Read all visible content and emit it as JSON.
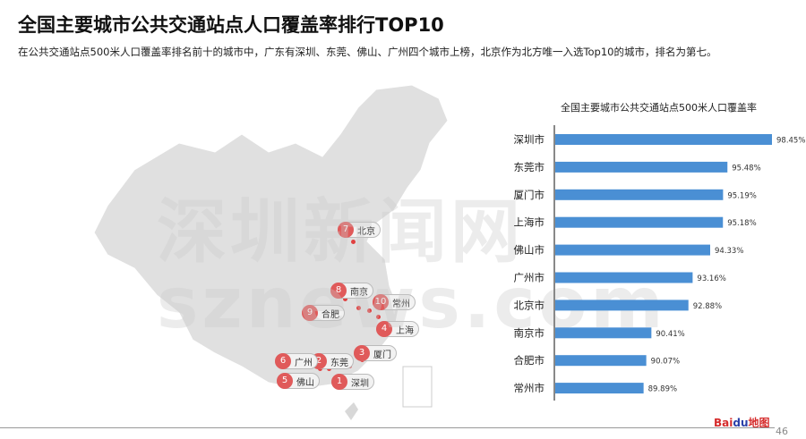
{
  "header": {
    "title": "全国主要城市公共交通站点人口覆盖率排行TOP10",
    "subtitle": "在公共交通站点500米人口覆盖率排名前十的城市中，广东有深圳、东莞、佛山、广州四个城市上榜，北京作为北方唯一入选Top10的城市，排名为第七。"
  },
  "map": {
    "markers": [
      {
        "rank": "1",
        "city": "深圳"
      },
      {
        "rank": "2",
        "city": "东莞"
      },
      {
        "rank": "3",
        "city": "厦门"
      },
      {
        "rank": "4",
        "city": "上海"
      },
      {
        "rank": "5",
        "city": "佛山"
      },
      {
        "rank": "6",
        "city": "广州"
      },
      {
        "rank": "7",
        "city": "北京"
      },
      {
        "rank": "8",
        "city": "南京"
      },
      {
        "rank": "9",
        "city": "合肥"
      },
      {
        "rank": "10",
        "city": "常州"
      }
    ]
  },
  "chart_data": {
    "type": "bar",
    "orientation": "horizontal",
    "title": "全国主要城市公共交通站点500米人口覆盖率",
    "categories": [
      "深圳市",
      "东莞市",
      "厦门市",
      "上海市",
      "佛山市",
      "广州市",
      "北京市",
      "南京市",
      "合肥市",
      "常州市"
    ],
    "values": [
      98.45,
      95.48,
      95.19,
      95.18,
      94.33,
      93.16,
      92.88,
      90.41,
      90.07,
      89.89
    ],
    "labels": [
      "98.45%",
      "95.48%",
      "95.19%",
      "95.18%",
      "94.33%",
      "93.16%",
      "92.88%",
      "90.41%",
      "90.07%",
      "89.89%"
    ],
    "xlim": [
      84,
      100
    ],
    "bar_color": "#4a8fd4",
    "grid": false
  },
  "watermark": {
    "line1": "深圳新闻网",
    "line2": "sznews.com"
  },
  "footer": {
    "logo": "Bai",
    "logo_paw": "du",
    "logo_cn": "地图",
    "page": "46"
  }
}
